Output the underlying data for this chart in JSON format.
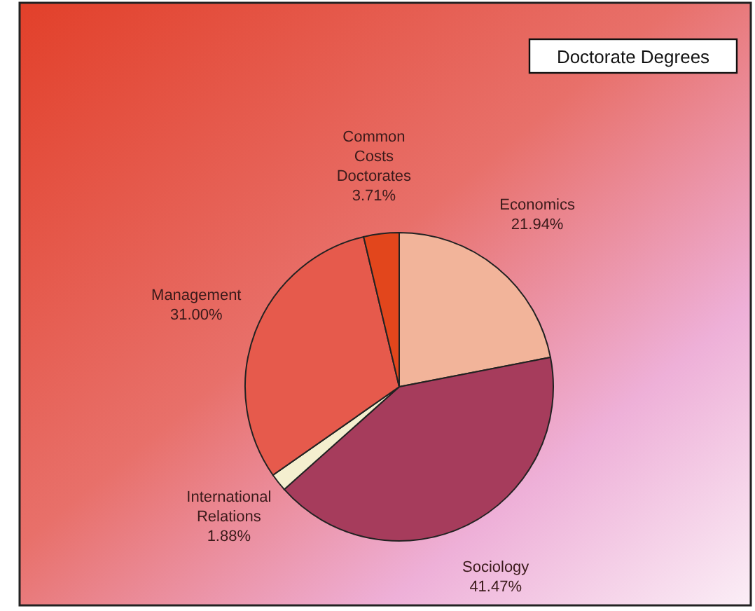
{
  "chart_data": {
    "type": "pie",
    "title": "Doctorate Degrees",
    "categories": [
      "Economics",
      "Sociology",
      "International Relations",
      "Management",
      "Common Costs Doctorates"
    ],
    "values": [
      21.94,
      41.47,
      1.88,
      31.0,
      3.71
    ],
    "value_labels": [
      "21.94%",
      "41.47%",
      "1.88%",
      "31.00%",
      "3.71%"
    ],
    "colors": [
      "#f2b49a",
      "#a63c5c",
      "#f4efcf",
      "#e65a4c",
      "#e2461c"
    ]
  }
}
